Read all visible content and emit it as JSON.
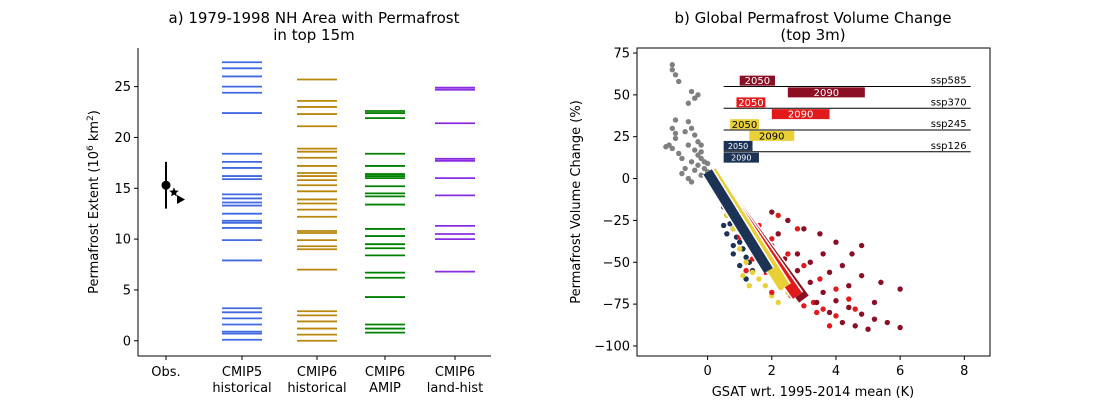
{
  "chart_data": [
    {
      "type": "scatter",
      "panel": "a",
      "title_line1": "a) 1979-1998 NH Area with Permafrost",
      "title_line2": "in top 15m",
      "ylabel": "Permafrost Extent (10",
      "ylabel_sup": "6",
      "ylabel_unit": " km",
      "ylabel_sup2": "2",
      "ylabel_close": ")",
      "ylim": [
        -1.5,
        28.8
      ],
      "yticks": [
        0,
        5,
        10,
        15,
        20,
        25
      ],
      "categories": [
        {
          "line1": "Obs.",
          "line2": ""
        },
        {
          "line1": "CMIP5",
          "line2": "historical"
        },
        {
          "line1": "CMIP6",
          "line2": "historical"
        },
        {
          "line1": "CMIP6",
          "line2": "AMIP"
        },
        {
          "line1": "CMIP6",
          "line2": "land-hist"
        }
      ],
      "obs": {
        "circle": 15.3,
        "error_low": 13.0,
        "error_high": 17.6,
        "star": 14.6,
        "triangle": 13.9
      },
      "series": [
        {
          "category": 1,
          "color": "#4169e1",
          "values": [
            27.4,
            26.8,
            26.0,
            25.0,
            24.4,
            22.4,
            18.4,
            17.6,
            17.0,
            16.2,
            15.9,
            14.4,
            14.0,
            13.6,
            13.3,
            12.5,
            11.8,
            11.6,
            11.1,
            9.9,
            7.9,
            3.2,
            2.8,
            2.2,
            1.6,
            0.9,
            0.7,
            0.1
          ]
        },
        {
          "category": 2,
          "color": "#b8860b",
          "values": [
            25.7,
            23.6,
            23.0,
            22.3,
            21.1,
            18.9,
            18.6,
            18.0,
            17.2,
            16.5,
            16.2,
            15.8,
            15.3,
            14.7,
            13.9,
            13.5,
            12.9,
            12.2,
            10.8,
            10.6,
            9.9,
            9.3,
            9.0,
            7.0,
            2.9,
            2.5,
            1.9,
            1.2,
            0.6,
            0.0
          ]
        },
        {
          "category": 3,
          "color": "#008000",
          "values": [
            22.6,
            22.4,
            21.9,
            18.4,
            17.2,
            16.4,
            16.2,
            16.0,
            15.2,
            14.5,
            14.2,
            13.4,
            11.0,
            10.3,
            9.5,
            9.1,
            8.4,
            6.7,
            6.2,
            4.3,
            1.6,
            1.2,
            0.8
          ]
        },
        {
          "category": 4,
          "color": "#8a2be2",
          "values": [
            24.9,
            24.7,
            21.4,
            17.9,
            17.7,
            16.0,
            14.3,
            11.3,
            10.5,
            10.0,
            6.8
          ]
        }
      ]
    },
    {
      "type": "scatter",
      "panel": "b",
      "title_line1": "b) Global Permafrost Volume Change",
      "title_line2": "(top 3m)",
      "xlabel": "GSAT wrt. 1995-2014 mean (K)",
      "ylabel": "Permafrost Volume Change (%)",
      "xlim": [
        -2.2,
        8.8
      ],
      "ylim": [
        -106,
        78
      ],
      "xticks": [
        0,
        2,
        4,
        6,
        8
      ],
      "yticks": [
        75,
        50,
        25,
        0,
        -25,
        -50,
        -75,
        -100
      ],
      "colors": {
        "historical": "#808080",
        "ssp126": "#1d3356",
        "ssp245": "#ead037",
        "ssp370": "#e31a1c",
        "ssp585": "#8b0e23"
      },
      "scenario_bars": [
        {
          "name": "ssp585",
          "line_y": 55,
          "line_x": [
            0.5,
            8.2
          ],
          "color": "#8b0e23",
          "b2050": {
            "label": "2050",
            "x": [
              1.0,
              2.1
            ],
            "y": 58.5
          },
          "b2090": {
            "label": "2090",
            "x": [
              2.5,
              4.9
            ],
            "y": 51.5
          }
        },
        {
          "name": "ssp370",
          "line_y": 42,
          "line_x": [
            0.5,
            8.2
          ],
          "color": "#e31a1c",
          "b2050": {
            "label": "2050",
            "x": [
              0.9,
              1.8
            ],
            "y": 45.5
          },
          "b2090": {
            "label": "2090",
            "x": [
              2.0,
              3.8
            ],
            "y": 38.5
          }
        },
        {
          "name": "ssp245",
          "line_y": 29,
          "line_x": [
            0.5,
            8.2
          ],
          "color": "#ead037",
          "b2050": {
            "label": "2050",
            "x": [
              0.7,
              1.6
            ],
            "y": 32.5
          },
          "b2090": {
            "label": "2090",
            "x": [
              1.3,
              2.7
            ],
            "y": 25.5
          }
        },
        {
          "name": "ssp126",
          "line_y": 16,
          "line_x": [
            0.5,
            8.2
          ],
          "color": "#1d3356",
          "b2050": {
            "label": "2050",
            "x": [
              0.5,
              1.4
            ],
            "y": 19.5
          },
          "b2090": {
            "label": "2090",
            "x": [
              0.5,
              1.6
            ],
            "y": 12.5
          }
        }
      ],
      "fit_arrows": [
        {
          "scenario": "ssp585",
          "from": [
            0.1,
            4
          ],
          "to": [
            3.0,
            -72
          ]
        },
        {
          "scenario": "ssp370",
          "from": [
            0.1,
            4
          ],
          "to": [
            2.8,
            -70
          ]
        },
        {
          "scenario": "ssp245",
          "from": [
            0.1,
            4
          ],
          "to": [
            2.4,
            -65
          ]
        },
        {
          "scenario": "ssp126",
          "from": [
            0.0,
            4
          ],
          "to": [
            1.9,
            -55
          ]
        }
      ],
      "historical_points": [
        [
          -1.1,
          68
        ],
        [
          -1.1,
          65
        ],
        [
          -1.0,
          62
        ],
        [
          -0.9,
          58
        ],
        [
          -0.5,
          52
        ],
        [
          -0.4,
          48
        ],
        [
          -0.3,
          50
        ],
        [
          -0.6,
          45
        ],
        [
          -1.0,
          35
        ],
        [
          -1.1,
          30
        ],
        [
          -1.0,
          27
        ],
        [
          -1.0,
          24
        ],
        [
          -1.2,
          20
        ],
        [
          -1.1,
          18
        ],
        [
          -0.9,
          15
        ],
        [
          -0.8,
          12
        ],
        [
          -0.6,
          34
        ],
        [
          -0.5,
          30
        ],
        [
          -0.4,
          26
        ],
        [
          -0.3,
          22
        ],
        [
          -0.6,
          20
        ],
        [
          -0.4,
          17
        ],
        [
          -0.3,
          14
        ],
        [
          -0.2,
          12
        ],
        [
          -0.5,
          10
        ],
        [
          -0.3,
          8
        ],
        [
          -0.1,
          6
        ],
        [
          0.0,
          4
        ],
        [
          -0.2,
          2
        ],
        [
          -0.7,
          6
        ],
        [
          -0.8,
          3
        ],
        [
          -0.5,
          -2
        ],
        [
          -0.2,
          16
        ],
        [
          -0.1,
          10
        ],
        [
          -0.4,
          5
        ],
        [
          -0.6,
          0
        ],
        [
          -1.3,
          19
        ],
        [
          -0.7,
          28
        ],
        [
          -0.2,
          20
        ],
        [
          0.0,
          9
        ]
      ],
      "ssp126_points": [
        [
          0.3,
          -8
        ],
        [
          0.4,
          -12
        ],
        [
          0.5,
          -17
        ],
        [
          0.6,
          -22
        ],
        [
          0.7,
          -27
        ],
        [
          0.8,
          -30
        ],
        [
          0.9,
          -35
        ],
        [
          1.0,
          -38
        ],
        [
          1.1,
          -42
        ],
        [
          1.2,
          -47
        ],
        [
          1.3,
          -50
        ],
        [
          0.6,
          -33
        ],
        [
          0.8,
          -45
        ],
        [
          1.0,
          -52
        ],
        [
          0.5,
          -28
        ],
        [
          1.4,
          -55
        ],
        [
          0.7,
          -18
        ],
        [
          0.9,
          -25
        ],
        [
          1.1,
          -30
        ],
        [
          1.5,
          -40
        ],
        [
          0.4,
          -5
        ],
        [
          1.2,
          -60
        ],
        [
          0.8,
          -40
        ],
        [
          1.6,
          -48
        ]
      ],
      "ssp245_points": [
        [
          0.5,
          -10
        ],
        [
          0.7,
          -18
        ],
        [
          0.9,
          -25
        ],
        [
          1.1,
          -32
        ],
        [
          1.3,
          -38
        ],
        [
          1.5,
          -45
        ],
        [
          1.7,
          -50
        ],
        [
          1.9,
          -55
        ],
        [
          2.1,
          -60
        ],
        [
          2.3,
          -65
        ],
        [
          2.5,
          -68
        ],
        [
          1.0,
          -42
        ],
        [
          1.2,
          -50
        ],
        [
          1.4,
          -56
        ],
        [
          1.6,
          -60
        ],
        [
          1.8,
          -64
        ],
        [
          2.0,
          -70
        ],
        [
          2.2,
          -74
        ],
        [
          0.8,
          -30
        ],
        [
          1.6,
          -35
        ],
        [
          2.0,
          -45
        ],
        [
          2.4,
          -55
        ],
        [
          1.3,
          -64
        ],
        [
          2.6,
          -62
        ],
        [
          0.6,
          -22
        ],
        [
          1.1,
          -58
        ],
        [
          1.8,
          -40
        ],
        [
          2.8,
          -72
        ]
      ],
      "ssp370_points": [
        [
          0.6,
          -12
        ],
        [
          0.9,
          -20
        ],
        [
          1.2,
          -28
        ],
        [
          1.5,
          -35
        ],
        [
          1.8,
          -42
        ],
        [
          2.1,
          -50
        ],
        [
          2.4,
          -58
        ],
        [
          2.7,
          -64
        ],
        [
          3.0,
          -70
        ],
        [
          3.3,
          -74
        ],
        [
          3.6,
          -78
        ],
        [
          4.0,
          -82
        ],
        [
          1.4,
          -48
        ],
        [
          1.8,
          -56
        ],
        [
          2.2,
          -62
        ],
        [
          2.6,
          -70
        ],
        [
          3.0,
          -76
        ],
        [
          3.4,
          -80
        ],
        [
          1.0,
          -35
        ],
        [
          1.6,
          -28
        ],
        [
          2.0,
          -36
        ],
        [
          2.5,
          -45
        ],
        [
          3.0,
          -52
        ],
        [
          3.5,
          -60
        ],
        [
          4.0,
          -66
        ],
        [
          4.4,
          -72
        ],
        [
          2.2,
          -22
        ],
        [
          2.8,
          -30
        ],
        [
          1.2,
          -55
        ],
        [
          3.8,
          -88
        ],
        [
          2.0,
          -68
        ],
        [
          4.6,
          -78
        ]
      ],
      "ssp585_points": [
        [
          0.8,
          -15
        ],
        [
          1.2,
          -24
        ],
        [
          1.6,
          -32
        ],
        [
          2.0,
          -40
        ],
        [
          2.4,
          -48
        ],
        [
          2.8,
          -55
        ],
        [
          3.2,
          -62
        ],
        [
          3.6,
          -68
        ],
        [
          4.0,
          -73
        ],
        [
          4.4,
          -77
        ],
        [
          4.8,
          -81
        ],
        [
          5.2,
          -84
        ],
        [
          5.6,
          -86
        ],
        [
          6.0,
          -89
        ],
        [
          2.0,
          -20
        ],
        [
          2.5,
          -25
        ],
        [
          3.0,
          -30
        ],
        [
          3.5,
          -33
        ],
        [
          4.0,
          -38
        ],
        [
          4.5,
          -45
        ],
        [
          4.8,
          -40
        ],
        [
          3.6,
          -45
        ],
        [
          4.2,
          -52
        ],
        [
          4.8,
          -58
        ],
        [
          5.4,
          -62
        ],
        [
          6.0,
          -66
        ],
        [
          2.6,
          -60
        ],
        [
          3.0,
          -68
        ],
        [
          3.4,
          -74
        ],
        [
          3.8,
          -80
        ],
        [
          4.2,
          -86
        ],
        [
          4.6,
          -88
        ],
        [
          5.0,
          -90
        ],
        [
          2.2,
          -33
        ],
        [
          2.8,
          -45
        ],
        [
          3.2,
          -50
        ],
        [
          1.8,
          -50
        ],
        [
          5.2,
          -74
        ],
        [
          4.4,
          -64
        ],
        [
          3.8,
          -56
        ]
      ]
    }
  ]
}
